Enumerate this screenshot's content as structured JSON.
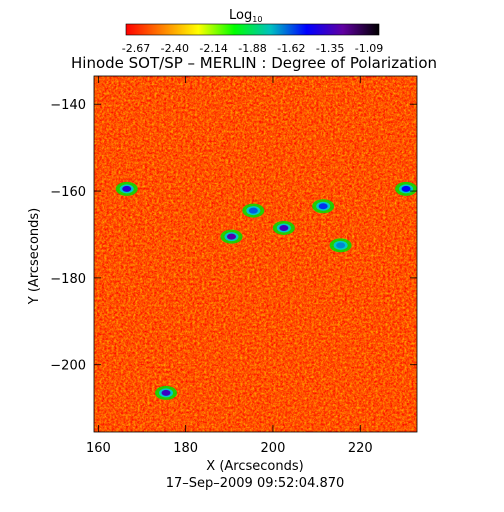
{
  "colorbar": {
    "label": "Log",
    "label_sub": "10",
    "tick_labels": [
      "-2.67",
      "-2.40",
      "-2.14",
      "-1.88",
      "-1.62",
      "-1.35",
      "-1.09"
    ],
    "range": [
      -2.67,
      -1.09
    ],
    "colormap": [
      "#ff0000",
      "#ff8000",
      "#ffff00",
      "#00ff00",
      "#00c0c0",
      "#0000ff",
      "#6000a0",
      "#000000"
    ]
  },
  "chart_data": {
    "type": "heatmap",
    "title": "Hinode SOT/SP – MERLIN : Degree of Polarization",
    "xlabel": "X (Arcseconds)",
    "ylabel": "Y (Arcseconds)",
    "xlim": [
      159,
      233
    ],
    "ylim": [
      -215.5,
      -133.5
    ],
    "x_ticks": [
      160,
      180,
      200,
      220
    ],
    "y_ticks": [
      -140,
      -160,
      -180,
      -200
    ],
    "dominant_values": "mostly -2.67 to -2.40 (red/orange), with scattered higher-polarization patches up to -1.09",
    "high_polarization_patches": [
      {
        "x": 190.5,
        "y": -170.5,
        "value": -1.35
      },
      {
        "x": 175.5,
        "y": -206.5,
        "value": -1.4
      },
      {
        "x": 202.5,
        "y": -168.5,
        "value": -1.4
      },
      {
        "x": 215.5,
        "y": -172.5,
        "value": -1.7
      },
      {
        "x": 166.5,
        "y": -159.5,
        "value": -1.45
      },
      {
        "x": 211.5,
        "y": -163.5,
        "value": -1.6
      },
      {
        "x": 230.5,
        "y": -159.5,
        "value": -1.55
      },
      {
        "x": 195.5,
        "y": -164.5,
        "value": -1.65
      }
    ]
  },
  "timestamp": "17–Sep–2009 09:52:04.870"
}
